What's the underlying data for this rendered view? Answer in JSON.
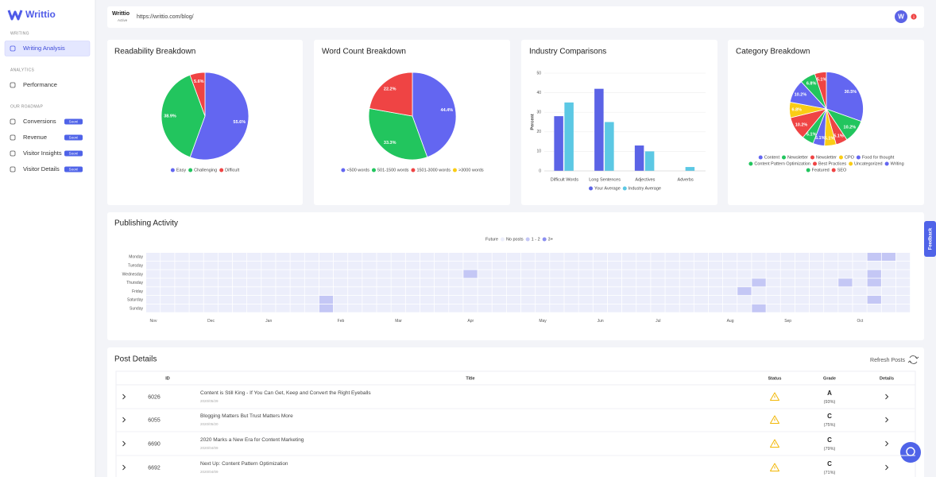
{
  "sidebar": {
    "brand": "Writtio",
    "sections": [
      {
        "heading": "WRITING",
        "items": [
          {
            "label": "Writing Analysis"
          }
        ]
      },
      {
        "heading": "ANALYTICS",
        "items": [
          {
            "label": "Performance"
          }
        ]
      },
      {
        "heading": "OUR ROADMAP",
        "items": [
          {
            "label": "Conversions",
            "badge": "Soon!"
          },
          {
            "label": "Revenue",
            "badge": "Soon!"
          },
          {
            "label": "Visitor Insights",
            "badge": "Soon!"
          },
          {
            "label": "Visitor Details",
            "badge": "Soon!"
          }
        ]
      }
    ]
  },
  "topbar": {
    "site": "Writtio",
    "status": "Active",
    "url": "https://writtio.com/blog/",
    "avatar": "W",
    "notifications": "1"
  },
  "chart_data": [
    {
      "type": "pie",
      "title": "Readability Breakdown",
      "categories": [
        "Easy",
        "Challenging",
        "Difficult"
      ],
      "values": [
        55.6,
        38.9,
        5.6
      ],
      "value_labels": [
        "55.6%",
        "38.9%",
        "5.6%"
      ],
      "colors": [
        "#6366f1",
        "#22c55e",
        "#ef4444"
      ]
    },
    {
      "type": "pie",
      "title": "Word Count Breakdown",
      "categories": [
        "<500 words",
        "501-1500 words",
        "1501-3000 words",
        ">3000 words"
      ],
      "values": [
        44.4,
        33.3,
        22.2,
        0
      ],
      "value_labels": [
        "44.4%",
        "33.3%",
        "22.2%",
        null
      ],
      "colors": [
        "#6366f1",
        "#22c55e",
        "#ef4444",
        "#facc15"
      ]
    },
    {
      "type": "bar",
      "title": "Industry Comparisons",
      "ylabel": "Percent",
      "categories": [
        "Difficult Words",
        "Long Sentences",
        "Adjectives",
        "Adverbs"
      ],
      "series": [
        {
          "name": "Your Average",
          "color": "#5b63e6",
          "values": [
            28,
            42,
            13,
            0
          ]
        },
        {
          "name": "Industry Average",
          "color": "#5cc8e4",
          "values": [
            35,
            25,
            10,
            2
          ]
        }
      ],
      "ylim": [
        0,
        50
      ],
      "yticks": [
        0,
        10,
        20,
        30,
        40,
        50
      ],
      "grid": true
    },
    {
      "type": "pie",
      "title": "Category Breakdown",
      "categories": [
        "Content",
        "Newsletter",
        "Newsletter",
        "CPO",
        "Food for thought",
        "Content Pattern Optimization",
        "Best Practices",
        "Uncategorized",
        "Writing",
        "Featured",
        "SEO"
      ],
      "values": [
        30.5,
        10.2,
        5.1,
        5.1,
        5.1,
        5.1,
        10.2,
        6.8,
        10.2,
        6.8,
        5.1
      ],
      "value_labels": [
        "30.5%",
        "10.2%",
        "5.1%",
        "5.1%",
        "5.1%",
        "5.1%",
        "10.2%",
        "6.8%",
        "10.2%",
        "6.8%",
        "5.1%"
      ],
      "colors": [
        "#6366f1",
        "#22c55e",
        "#ef4444",
        "#facc15",
        "#6366f1",
        "#22c55e",
        "#ef4444",
        "#facc15",
        "#6366f1",
        "#22c55e",
        "#ef4444"
      ]
    },
    {
      "type": "heatmap",
      "title": "Publishing Activity",
      "legend": [
        {
          "name": "Future",
          "color": "#ffffff"
        },
        {
          "name": "No posts",
          "color": "#eceefb"
        },
        {
          "name": "1 - 2",
          "color": "#c4c7f5"
        },
        {
          "name": "3+",
          "color": "#8b8ff0"
        }
      ],
      "rows": [
        "Monday",
        "Tuesday",
        "Wednesday",
        "Thursday",
        "Friday",
        "Saturday",
        "Sunday"
      ],
      "months": [
        {
          "label": "Nov",
          "week": 0
        },
        {
          "label": "Dec",
          "week": 4
        },
        {
          "label": "Jan",
          "week": 8
        },
        {
          "label": "Feb",
          "week": 13
        },
        {
          "label": "Mar",
          "week": 17
        },
        {
          "label": "Apr",
          "week": 22
        },
        {
          "label": "May",
          "week": 27
        },
        {
          "label": "Jun",
          "week": 31
        },
        {
          "label": "Jul",
          "week": 35
        },
        {
          "label": "Aug",
          "week": 40
        },
        {
          "label": "Sep",
          "week": 44
        },
        {
          "label": "Oct",
          "week": 49
        }
      ],
      "values": [
        [
          0,
          0,
          0,
          0,
          0,
          0,
          0,
          0,
          0,
          0,
          0,
          0,
          0,
          0,
          0,
          0,
          0,
          0,
          0,
          0,
          0,
          0,
          0,
          0,
          0,
          0,
          0,
          0,
          0,
          0,
          0,
          0,
          0,
          0,
          0,
          0,
          0,
          0,
          0,
          0,
          0,
          0,
          0,
          0,
          0,
          0,
          0,
          0,
          0,
          0,
          1,
          1,
          0
        ],
        [
          0,
          0,
          0,
          0,
          0,
          0,
          0,
          0,
          0,
          0,
          0,
          0,
          0,
          0,
          0,
          0,
          0,
          0,
          0,
          0,
          0,
          0,
          0,
          0,
          0,
          0,
          0,
          0,
          0,
          0,
          0,
          0,
          0,
          0,
          0,
          0,
          0,
          0,
          0,
          0,
          0,
          0,
          0,
          0,
          0,
          0,
          0,
          0,
          0,
          0,
          0,
          0,
          0
        ],
        [
          0,
          0,
          0,
          0,
          0,
          0,
          0,
          0,
          0,
          0,
          0,
          0,
          0,
          0,
          0,
          0,
          0,
          0,
          0,
          0,
          0,
          0,
          1,
          0,
          0,
          0,
          0,
          0,
          0,
          0,
          0,
          0,
          0,
          0,
          0,
          0,
          0,
          0,
          0,
          0,
          0,
          0,
          0,
          0,
          0,
          0,
          0,
          0,
          0,
          0,
          1,
          0,
          0
        ],
        [
          0,
          0,
          0,
          0,
          0,
          0,
          0,
          0,
          0,
          0,
          0,
          0,
          0,
          0,
          0,
          0,
          0,
          0,
          0,
          0,
          0,
          0,
          0,
          0,
          0,
          0,
          0,
          0,
          0,
          0,
          0,
          0,
          0,
          0,
          0,
          0,
          0,
          0,
          0,
          0,
          0,
          0,
          1,
          0,
          0,
          0,
          0,
          0,
          1,
          0,
          1,
          0,
          0
        ],
        [
          0,
          0,
          0,
          0,
          0,
          0,
          0,
          0,
          0,
          0,
          0,
          0,
          0,
          0,
          0,
          0,
          0,
          0,
          0,
          0,
          0,
          0,
          0,
          0,
          0,
          0,
          0,
          0,
          0,
          0,
          0,
          0,
          0,
          0,
          0,
          0,
          0,
          0,
          0,
          0,
          0,
          1,
          0,
          0,
          0,
          0,
          0,
          0,
          0,
          0,
          0,
          0,
          0
        ],
        [
          0,
          0,
          0,
          0,
          0,
          0,
          0,
          0,
          0,
          0,
          0,
          0,
          1,
          0,
          0,
          0,
          0,
          0,
          0,
          0,
          0,
          0,
          0,
          0,
          0,
          0,
          0,
          0,
          0,
          0,
          0,
          0,
          0,
          0,
          0,
          0,
          0,
          0,
          0,
          0,
          0,
          0,
          0,
          0,
          0,
          0,
          0,
          0,
          0,
          0,
          1,
          0,
          0
        ],
        [
          0,
          0,
          0,
          0,
          0,
          0,
          0,
          0,
          0,
          0,
          0,
          0,
          1,
          0,
          0,
          0,
          0,
          0,
          0,
          0,
          0,
          0,
          0,
          0,
          0,
          0,
          0,
          0,
          0,
          0,
          0,
          0,
          0,
          0,
          0,
          0,
          0,
          0,
          0,
          0,
          0,
          0,
          1,
          0,
          0,
          0,
          0,
          0,
          0,
          0,
          0,
          0,
          0
        ]
      ]
    }
  ],
  "post_details": {
    "title": "Post Details",
    "refresh": "Refresh Posts",
    "columns": [
      "ID",
      "Title",
      "Status",
      "Grade",
      "Details"
    ],
    "rows": [
      {
        "id": "6026",
        "title": "Content is Still King - If You Can Get, Keep and Convert the Right Eyeballs",
        "date": "2020/05/29",
        "grade": "A",
        "score": "(93%)"
      },
      {
        "id": "6055",
        "title": "Blogging Matters But Trust Matters More",
        "date": "2020/05/20",
        "grade": "C",
        "score": "(75%)"
      },
      {
        "id": "6690",
        "title": "2020 Marks a New Era for Content Marketing",
        "date": "2020/04/09",
        "grade": "C",
        "score": "(79%)"
      },
      {
        "id": "6692",
        "title": "Next Up: Content Pattern Optimization",
        "date": "2020/04/09",
        "grade": "C",
        "score": "(71%)"
      }
    ]
  },
  "feedback": "Feedback"
}
